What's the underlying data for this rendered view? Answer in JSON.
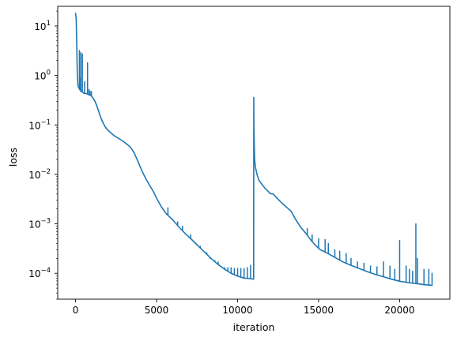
{
  "chart_data": {
    "type": "line",
    "xlabel": "iteration",
    "ylabel": "loss",
    "yscale": "log",
    "xlim": [
      -1100,
      23100
    ],
    "ylim": [
      3e-05,
      25
    ],
    "grid": false,
    "x_ticks": [
      0,
      5000,
      10000,
      15000,
      20000
    ],
    "x_tick_labels": [
      "0",
      "5000",
      "10000",
      "15000",
      "20000"
    ],
    "y_ticks": [
      0.0001,
      0.001,
      0.01,
      0.1,
      1,
      10
    ],
    "y_tick_mantissa": [
      "10",
      "10",
      "10",
      "10",
      "10",
      "10"
    ],
    "y_tick_exponents": [
      "−4",
      "−3",
      "−2",
      "−1",
      "0",
      "1"
    ],
    "series": [
      {
        "color": "#1f77b4",
        "x": [
          0,
          40,
          80,
          110,
          150,
          200,
          260,
          300,
          350,
          400,
          500,
          600,
          700,
          800,
          900,
          1000,
          1100,
          1200,
          1300,
          1400,
          1500,
          1600,
          1700,
          1800,
          1900,
          2000,
          2200,
          2400,
          2600,
          2800,
          3000,
          3200,
          3400,
          3600,
          3800,
          4000,
          4200,
          4400,
          4600,
          4800,
          5000,
          5300,
          5600,
          6000,
          6400,
          6800,
          7200,
          7600,
          8000,
          8400,
          8800,
          9200,
          9600,
          10000,
          10400,
          10800,
          10990,
          11000,
          11010,
          11050,
          11100,
          11200,
          11300,
          11500,
          11700,
          11900,
          12000,
          12200,
          12400,
          12600,
          12800,
          13000,
          13300,
          13600,
          13900,
          14200,
          14500,
          14800,
          15100,
          15500,
          16000,
          16500,
          17000,
          17500,
          18000,
          18500,
          19000,
          19500,
          20000,
          20500,
          21000,
          21500,
          22000
        ],
        "values": [
          18,
          14,
          3.5,
          1.0,
          0.62,
          0.56,
          0.52,
          0.5,
          0.47,
          0.47,
          0.44,
          0.43,
          0.43,
          0.41,
          0.4,
          0.38,
          0.34,
          0.3,
          0.25,
          0.2,
          0.16,
          0.13,
          0.11,
          0.095,
          0.085,
          0.078,
          0.068,
          0.06,
          0.055,
          0.05,
          0.045,
          0.04,
          0.035,
          0.028,
          0.02,
          0.014,
          0.01,
          0.0075,
          0.0058,
          0.0045,
          0.0033,
          0.0022,
          0.0016,
          0.0012,
          0.00085,
          0.00062,
          0.00047,
          0.00035,
          0.00026,
          0.000195,
          0.00015,
          0.000121,
          0.0001,
          8.8e-05,
          8e-05,
          7.8e-05,
          7.6e-05,
          0.36,
          0.08,
          0.02,
          0.014,
          0.01,
          0.0078,
          0.0063,
          0.0052,
          0.0045,
          0.0041,
          0.004,
          0.0034,
          0.0029,
          0.0025,
          0.0022,
          0.0018,
          0.0012,
          0.00085,
          0.00065,
          0.00048,
          0.00037,
          0.0003,
          0.00026,
          0.00021,
          0.00017,
          0.000145,
          0.000125,
          0.000108,
          9.5e-05,
          8.5e-05,
          7.6e-05,
          6.9e-05,
          6.5e-05,
          6.2e-05,
          5.9e-05,
          5.7e-05
        ]
      }
    ],
    "spikes": [
      [
        240,
        3.2
      ],
      [
        330,
        2.9
      ],
      [
        420,
        2.7
      ],
      [
        310,
        0.9
      ],
      [
        560,
        0.75
      ],
      [
        740,
        1.8
      ],
      [
        830,
        0.52
      ],
      [
        900,
        0.48
      ],
      [
        980,
        0.47
      ],
      [
        5700,
        0.0021
      ],
      [
        6300,
        0.0011
      ],
      [
        6600,
        0.0009
      ],
      [
        7100,
        0.0006
      ],
      [
        7400,
        0.0004
      ],
      [
        7700,
        0.00035
      ],
      [
        8100,
        0.00026
      ],
      [
        8300,
        0.0002
      ],
      [
        8600,
        0.00018
      ],
      [
        8800,
        0.00017
      ],
      [
        9000,
        0.000135
      ],
      [
        9200,
        0.00013
      ],
      [
        9400,
        0.00013
      ],
      [
        9600,
        0.00013
      ],
      [
        9800,
        0.000125
      ],
      [
        10000,
        0.000125
      ],
      [
        10200,
        0.000125
      ],
      [
        10400,
        0.000125
      ],
      [
        10600,
        0.00013
      ],
      [
        10800,
        0.000145
      ],
      [
        13500,
        0.0014
      ],
      [
        14300,
        0.0008
      ],
      [
        14600,
        0.0006
      ],
      [
        15000,
        0.0005
      ],
      [
        15400,
        0.00048
      ],
      [
        15600,
        0.0004
      ],
      [
        16000,
        0.0003
      ],
      [
        16300,
        0.00028
      ],
      [
        16700,
        0.00025
      ],
      [
        17000,
        0.0002
      ],
      [
        17400,
        0.00017
      ],
      [
        17800,
        0.00016
      ],
      [
        18200,
        0.00014
      ],
      [
        18600,
        0.000135
      ],
      [
        19000,
        0.00017
      ],
      [
        19400,
        0.00014
      ],
      [
        19700,
        0.00012
      ],
      [
        20000,
        0.00046
      ],
      [
        20400,
        0.00014
      ],
      [
        20600,
        0.00012
      ],
      [
        20800,
        0.00011
      ],
      [
        21000,
        0.001
      ],
      [
        21100,
        0.0002
      ],
      [
        21500,
        0.00012
      ],
      [
        21800,
        0.00012
      ],
      [
        22000,
        0.0001
      ]
    ]
  }
}
